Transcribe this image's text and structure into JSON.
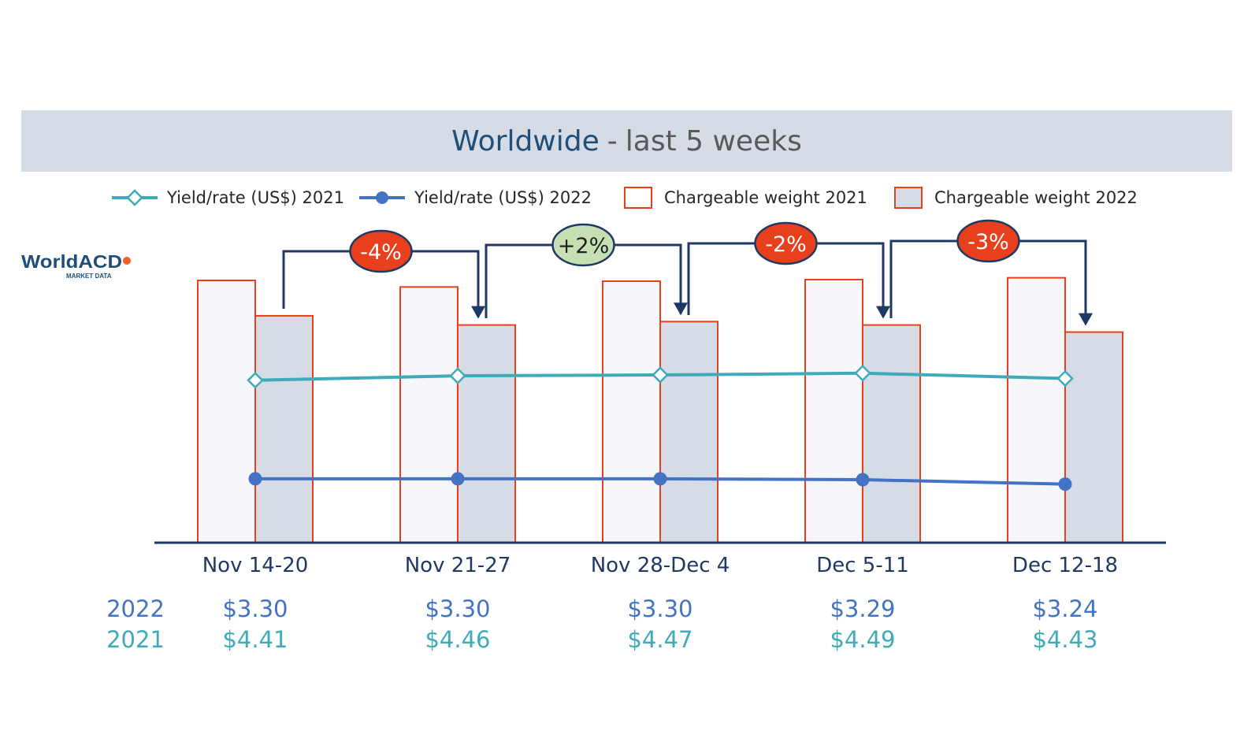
{
  "title": {
    "main": "Worldwide",
    "separator": "-",
    "sub": "last 5 weeks"
  },
  "logo": {
    "name": "WorldACD",
    "tagline": "MARKET DATA",
    "accent_color": "#f0602c"
  },
  "legend": {
    "yield_2021": "Yield/rate (US$) 2021",
    "yield_2022": "Yield/rate (US$) 2022",
    "weight_2021": "Chargeable weight 2021",
    "weight_2022": "Chargeable weight 2022"
  },
  "colors": {
    "title_band": "#d6dce5",
    "title_main": "#1f4e79",
    "bar_outline": "#e8401c",
    "bar_2021_fill": "#f7f7fb",
    "bar_2022_fill": "#d6dce5",
    "line_2021": "#3fabb8",
    "line_2022": "#4472c4",
    "axis": "#1f3864",
    "connector": "#1f3864",
    "badge_negative": "#e8401c",
    "badge_positive": "#c6e0b4",
    "category_text": "#1f3864"
  },
  "chart_data": {
    "type": "bar",
    "categories": [
      "Nov 14-20",
      "Nov 21-27",
      "Nov 28-Dec 4",
      "Dec 5-11",
      "Dec 12-18"
    ],
    "series": [
      {
        "name": "Chargeable weight 2021",
        "kind": "bar",
        "values": [
          100,
          97.5,
          99.7,
          100.3,
          101
        ]
      },
      {
        "name": "Chargeable weight 2022",
        "kind": "bar",
        "values": [
          86.5,
          83,
          84.3,
          83,
          80.3
        ]
      },
      {
        "name": "Yield/rate (US$) 2021",
        "kind": "line",
        "values": [
          4.41,
          4.46,
          4.47,
          4.49,
          4.43
        ]
      },
      {
        "name": "Yield/rate (US$) 2022",
        "kind": "line",
        "values": [
          3.3,
          3.3,
          3.3,
          3.29,
          3.24
        ]
      }
    ],
    "weight_scale": [
      0,
      100
    ],
    "yield_scale": [
      1.0,
      5.5
    ],
    "changes": [
      "-4%",
      "+2%",
      "-2%",
      "-3%"
    ],
    "table": {
      "rows": [
        {
          "label": "2022",
          "values": [
            "$3.30",
            "$3.30",
            "$3.30",
            "$3.29",
            "$3.24"
          ]
        },
        {
          "label": "2021",
          "values": [
            "$4.41",
            "$4.46",
            "$4.47",
            "$4.49",
            "$4.43"
          ]
        }
      ]
    },
    "title": "Worldwide - last 5 weeks",
    "grid": false,
    "legend_position": "top"
  }
}
